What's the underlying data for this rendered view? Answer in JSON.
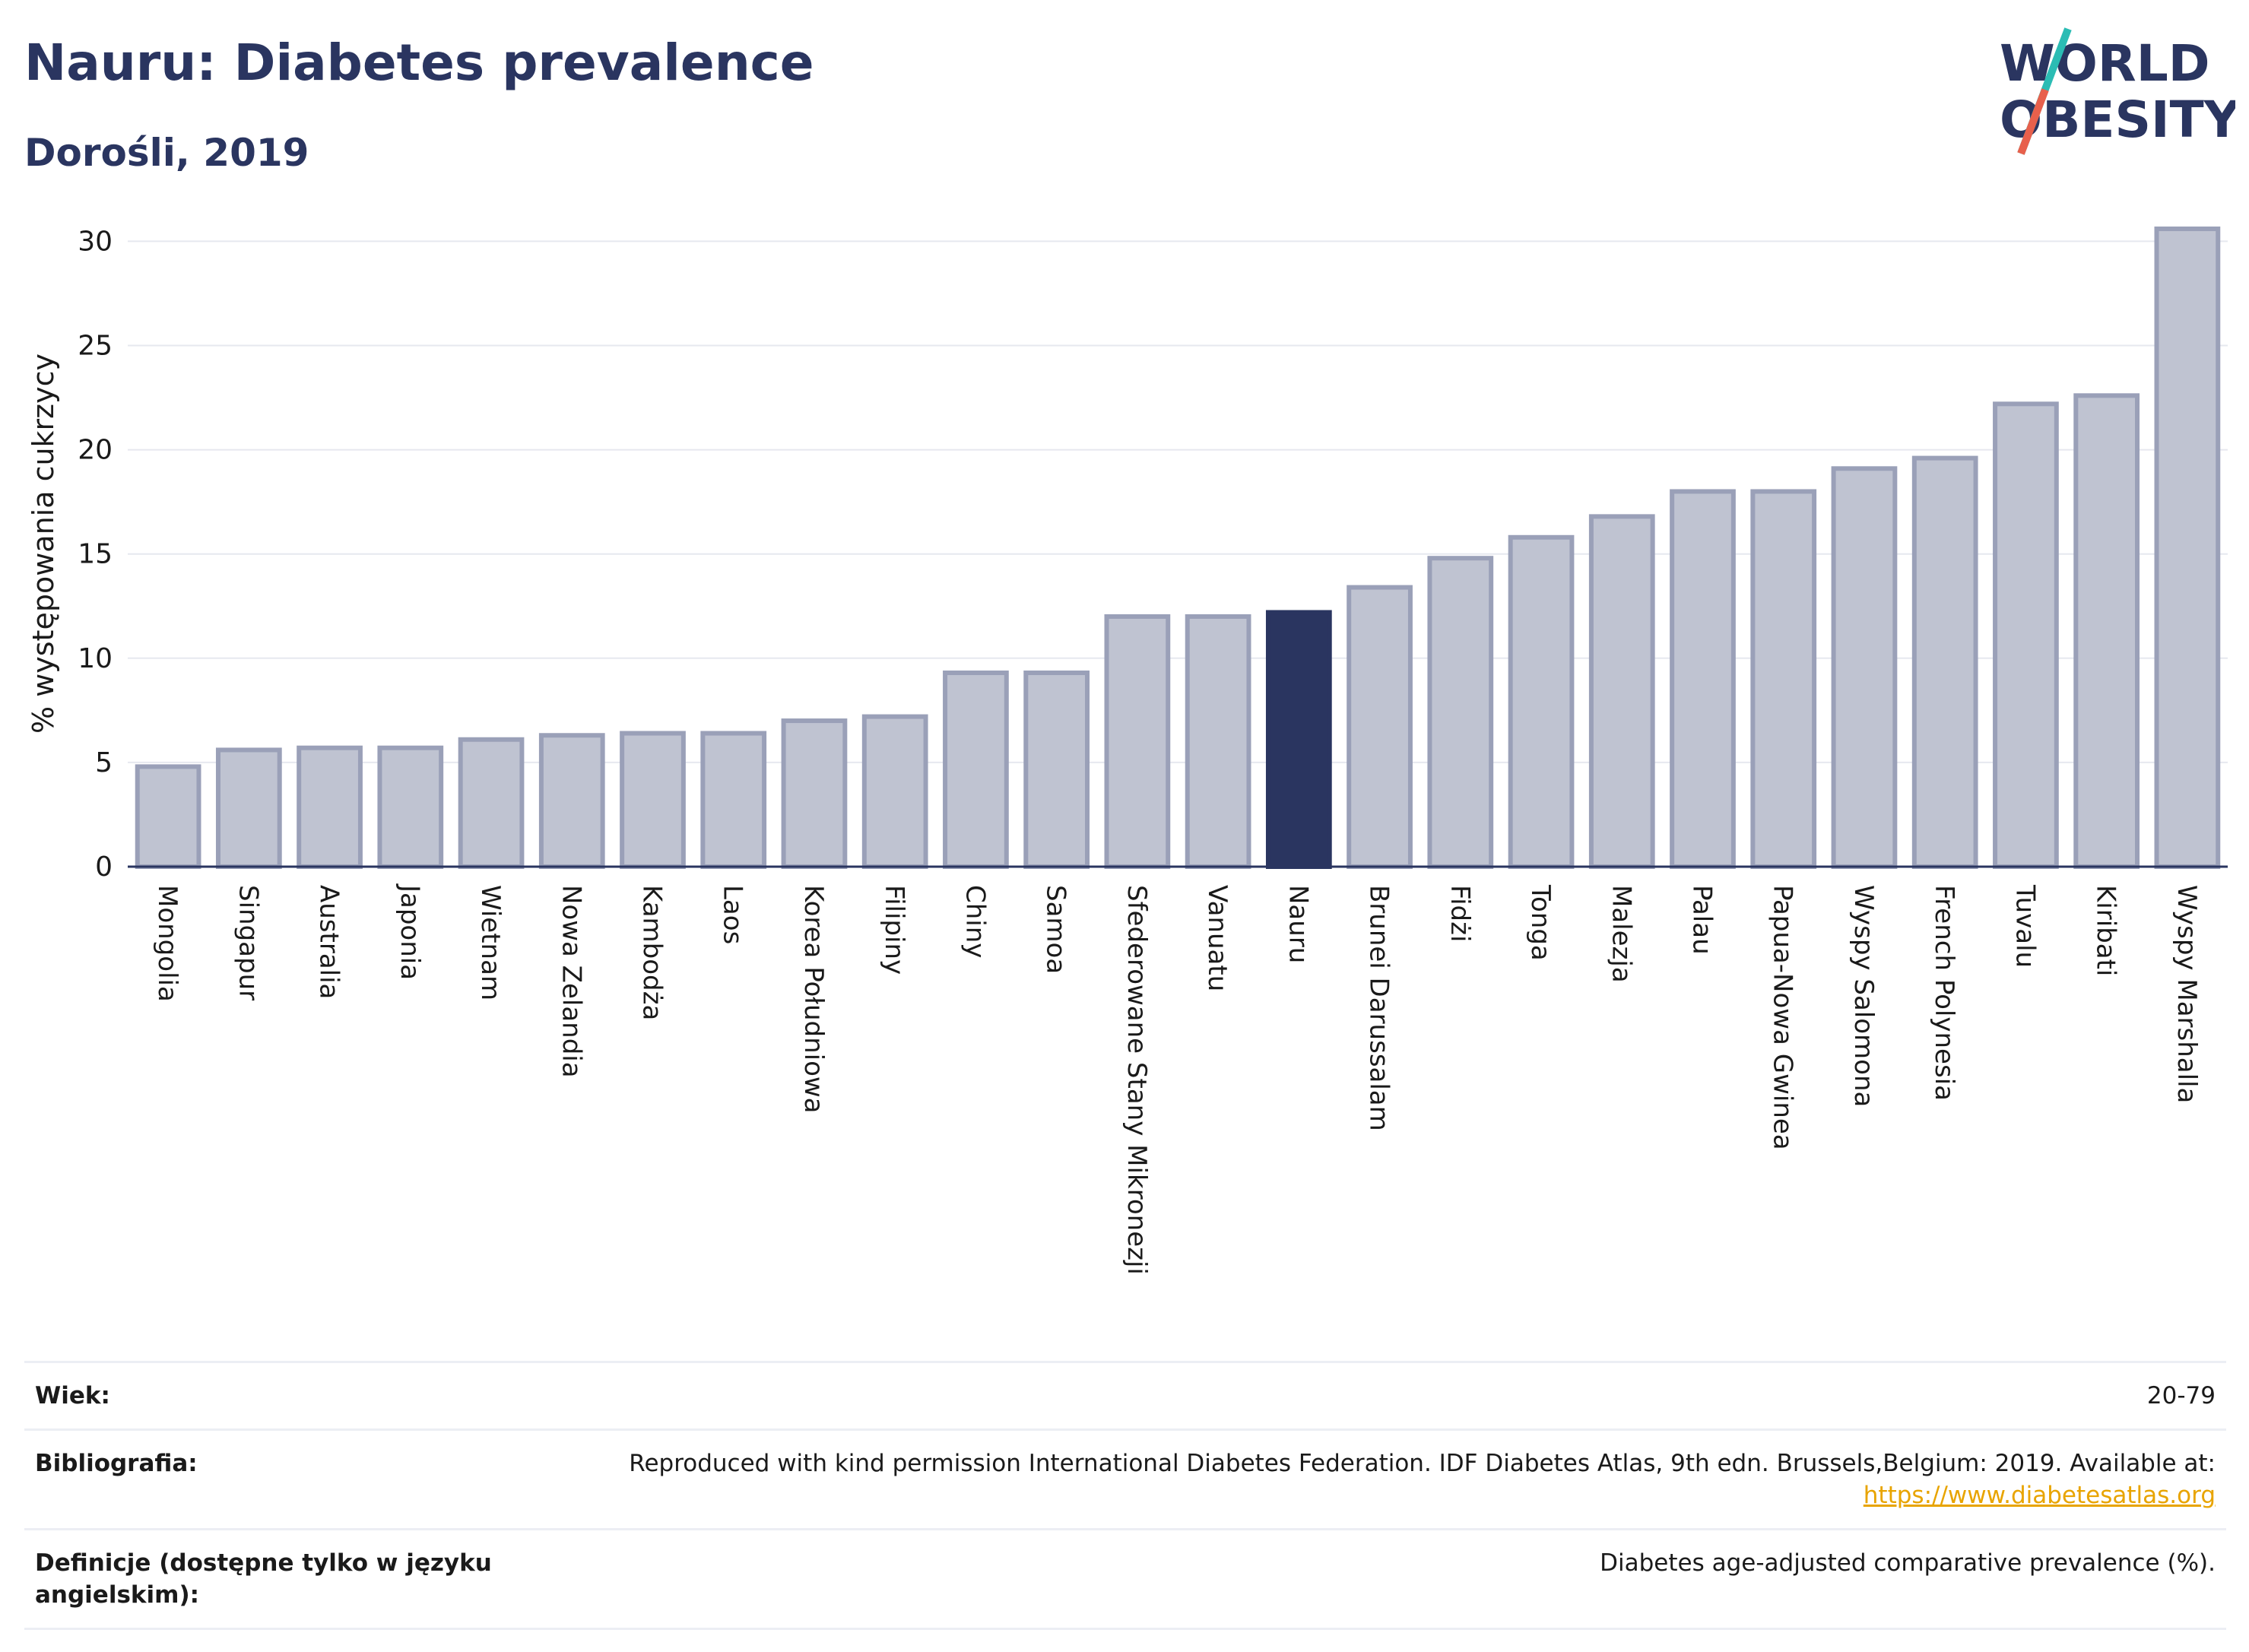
{
  "header": {
    "title": "Nauru: Diabetes prevalence",
    "subtitle": "Dorośli, 2019"
  },
  "logo": {
    "line1": "WORLD",
    "line2": "OBESITY"
  },
  "chart_data": {
    "type": "bar",
    "title": "Nauru: Diabetes prevalence",
    "subtitle": "Dorośli, 2019",
    "xlabel": "",
    "ylabel": "% występowania cukrzycy",
    "ylim": [
      0,
      31
    ],
    "yticks": [
      0,
      5,
      10,
      15,
      20,
      25,
      30
    ],
    "grid": true,
    "highlight": "Nauru",
    "categories": [
      "Mongolia",
      "Singapur",
      "Australia",
      "Japonia",
      "Wietnam",
      "Nowa Zelandia",
      "Kambodża",
      "Laos",
      "Korea Południowa",
      "Filipiny",
      "Chiny",
      "Samoa",
      "Sfederowane Stany Mikronezji",
      "Vanuatu",
      "Nauru",
      "Brunei Darussalam",
      "Fidżi",
      "Tonga",
      "Malezja",
      "Palau",
      "Papua-Nowa Gwinea",
      "Wyspy Salomona",
      "French Polynesia",
      "Tuvalu",
      "Kiribati",
      "Wyspy Marshalla"
    ],
    "values": [
      4.8,
      5.6,
      5.7,
      5.7,
      6.1,
      6.3,
      6.4,
      6.4,
      7.0,
      7.2,
      9.3,
      9.3,
      12.0,
      12.0,
      12.2,
      13.4,
      14.8,
      15.8,
      16.8,
      18.0,
      18.0,
      19.1,
      19.6,
      22.2,
      22.6,
      30.6
    ],
    "colors": {
      "bar": "#bfc3d1",
      "bar_border": "#9aa0b8",
      "highlight": "#2a3560"
    }
  },
  "meta": {
    "rows": [
      {
        "label": "Wiek:",
        "value": "20-79"
      },
      {
        "label": "Bibliografia:",
        "value": "Reproduced with kind permission International Diabetes Federation. IDF Diabetes Atlas, 9th edn. Brussels,Belgium: 2019. Available at:",
        "link": "https://www.diabetesatlas.org"
      },
      {
        "label": "Definicje (dostępne tylko w języku angielskim):",
        "value": "Diabetes age-adjusted comparative prevalence (%)."
      }
    ]
  }
}
